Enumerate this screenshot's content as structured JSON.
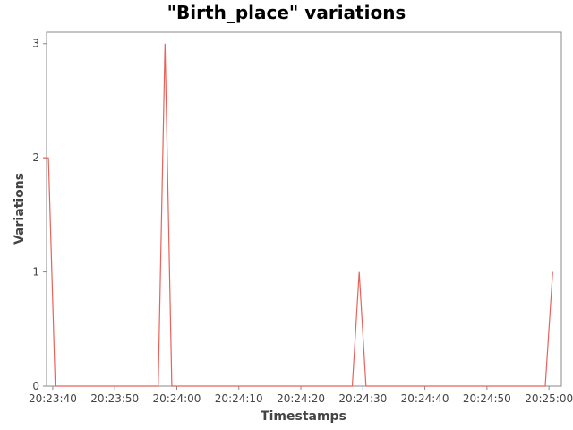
{
  "chart_data": {
    "type": "line",
    "title": "\"Birth_place\" variations",
    "xlabel": "Timestamps",
    "ylabel": "Variations",
    "x_tick_labels": [
      "20:23:40",
      "20:23:50",
      "20:24:00",
      "20:24:10",
      "20:24:20",
      "20:24:30",
      "20:24:40",
      "20:24:50",
      "20:25:00"
    ],
    "y_tick_labels": [
      "0",
      "1",
      "2",
      "3"
    ],
    "xlim": [
      "20:23:39",
      "20:25:02"
    ],
    "ylim": [
      0,
      3.1
    ],
    "grid": false,
    "series": [
      {
        "color": "#e8625c",
        "points": [
          {
            "x": "20:23:38.5",
            "y": 2
          },
          {
            "x": "20:23:39.3",
            "y": 2
          },
          {
            "x": "20:23:40.4",
            "y": 0
          },
          {
            "x": "20:23:57.0",
            "y": 0
          },
          {
            "x": "20:23:58.1",
            "y": 3
          },
          {
            "x": "20:23:59.2",
            "y": 0
          },
          {
            "x": "20:24:28.3",
            "y": 0
          },
          {
            "x": "20:24:29.4",
            "y": 1
          },
          {
            "x": "20:24:30.5",
            "y": 0
          },
          {
            "x": "20:24:59.4",
            "y": 0
          },
          {
            "x": "20:25:00.6",
            "y": 1
          }
        ]
      }
    ]
  }
}
